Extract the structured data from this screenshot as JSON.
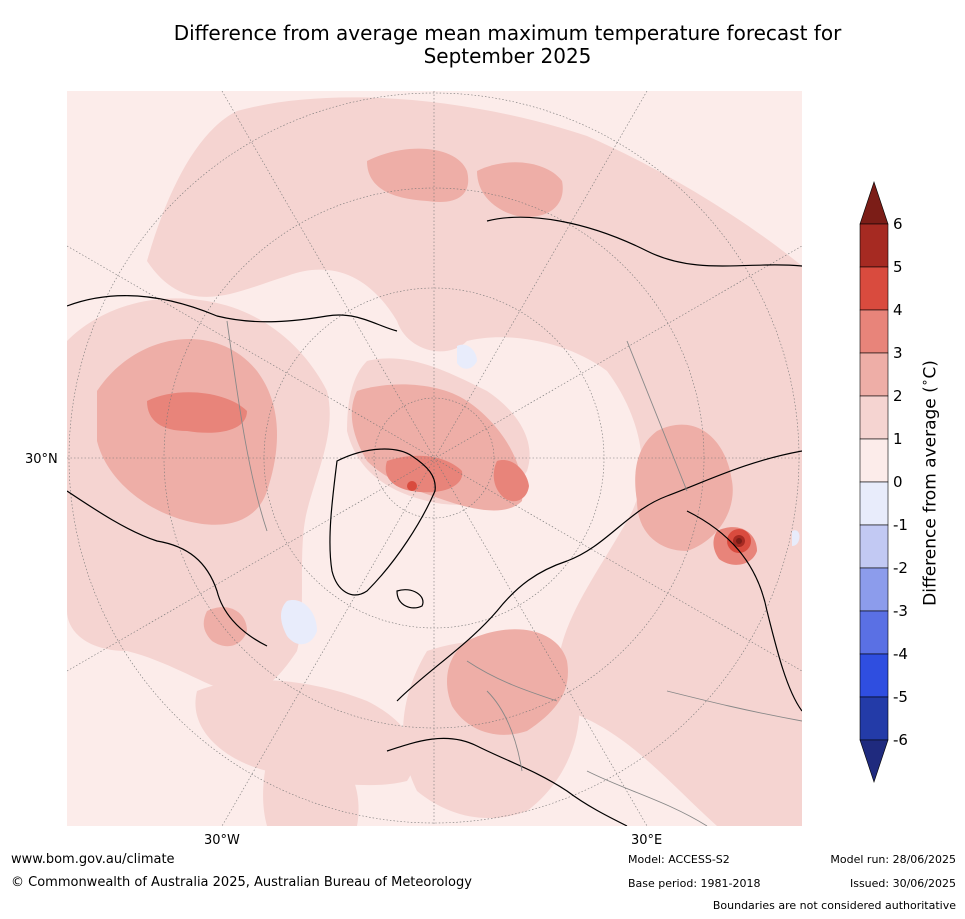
{
  "title_line1": "Difference from average mean maximum temperature forecast for",
  "title_line2": "September 2025",
  "axis_labels": {
    "lat_30n": "30°N",
    "lon_30w": "30°W",
    "lon_30e": "30°E"
  },
  "colorbar": {
    "label": "Difference from average ($^\\circ$C)",
    "label_text": "Difference from average (",
    "label_unit": "C)",
    "ticks": [
      "6",
      "5",
      "4",
      "3",
      "2",
      "1",
      "0",
      "-1",
      "-2",
      "-3",
      "-4",
      "-5",
      "-6"
    ],
    "colors": [
      "#7b1d17",
      "#a62a22",
      "#d94b3e",
      "#e8847a",
      "#eeaea7",
      "#f5d4d1",
      "#fcecea",
      "#e8ecfb",
      "#c2c9f3",
      "#8c9cec",
      "#5a70e4",
      "#2f4ee0",
      "#233ba8",
      "#1f2a7e"
    ]
  },
  "footer": {
    "website": "www.bom.gov.au/climate",
    "copyright": "© Commonwealth of Australia 2025, Australian Bureau of Meteorology",
    "model": "Model: ACCESS-S2",
    "base_period": "Base period: 1981-2018",
    "model_run": "Model run: 28/06/2025",
    "issued": "Issued: 30/06/2025",
    "disclaimer": "Boundaries are not considered authoritative"
  },
  "map_colors": {
    "anomaly_0_1": "#fcecea",
    "anomaly_1_2": "#f5d4d1",
    "anomaly_2_3": "#eeaea7",
    "anomaly_3_4": "#e8847a",
    "anomaly_4_5": "#d94b3e",
    "anomaly_5_6": "#a62a22",
    "anomaly_neg": "#e8ecfb",
    "coastline": "#000000",
    "boundary": "#888888"
  }
}
